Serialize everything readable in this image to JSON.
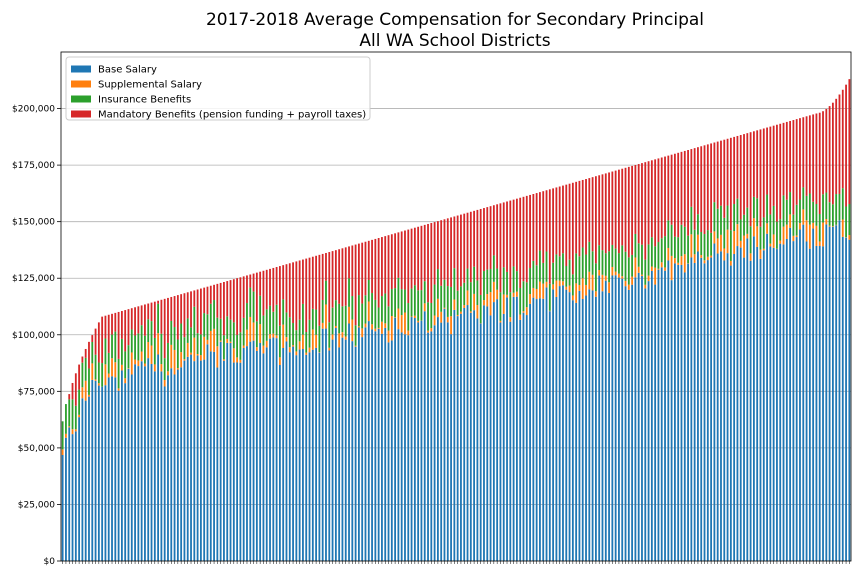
{
  "chart_data": {
    "type": "bar",
    "stacked": true,
    "title": "2017-2018 Average Compensation for Secondary Principal",
    "subtitle": "All WA School Districts",
    "xlabel": "",
    "ylabel": "",
    "ylim": [
      0,
      225000
    ],
    "y_ticks": [
      0,
      25000,
      50000,
      75000,
      100000,
      125000,
      150000,
      175000,
      200000
    ],
    "y_tick_labels": [
      "$0",
      "$25,000",
      "$50,000",
      "$75,000",
      "$100,000",
      "$125,000",
      "$150,000",
      "$175,000",
      "$200,000"
    ],
    "grid": "horizontal",
    "legend_position": "top-left",
    "series": [
      {
        "name": "Base Salary",
        "color": "#1f77b4"
      },
      {
        "name": "Supplemental Salary",
        "color": "#ff7f0e"
      },
      {
        "name": "Insurance Benefits",
        "color": "#2ca02c"
      },
      {
        "name": "Mandatory Benefits (pension funding + payroll taxes)",
        "color": "#d62728"
      }
    ],
    "district_count": 240,
    "total_range": [
      56000,
      213000
    ],
    "base_range": [
      45000,
      152000
    ],
    "sorted_by": "total ascending",
    "base_anchor_totals": [
      56000,
      83000,
      100000,
      108000,
      118000,
      125000,
      130000,
      135000,
      140000,
      145000,
      150000,
      155000,
      160000,
      165000,
      170000,
      175000,
      180000,
      185000,
      190000,
      196000,
      203000,
      213000
    ],
    "base_anchor_values": [
      45000,
      62000,
      76000,
      80000,
      88000,
      93000,
      95000,
      97000,
      100000,
      103000,
      105000,
      108000,
      112000,
      117000,
      121000,
      125000,
      130000,
      135000,
      138000,
      143000,
      148000,
      145000
    ]
  }
}
